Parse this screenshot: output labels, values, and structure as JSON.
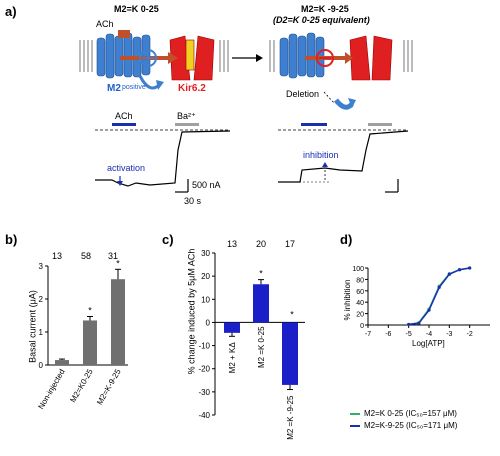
{
  "panel_a": {
    "letter": "a)",
    "left_title": "M2=K 0-25",
    "right_title": "M2=K -9-25",
    "right_subtitle": "(D2=K 0-25 equivalent)",
    "ach_label": "ACh",
    "m2_label": "M2",
    "kir_label": "Kir6.2",
    "positive_label": "positive",
    "deletion_label": "Deletion",
    "ach_bar_label": "ACh",
    "ba_bar_label": "Ba²⁺",
    "activation_label": "activation",
    "inhibition_label": "inhibition",
    "scale_current": "500 nA",
    "scale_time": "30 s",
    "colors": {
      "gpcr": "#3f7fd0",
      "channel": "#e02020",
      "m2": "#1f5fd0",
      "ach_bar": "#1a2fb0",
      "ba_bar": "#a0a0a0"
    }
  },
  "panel_b": {
    "letter": "b)",
    "ylabel": "Basal current (μA)",
    "counts": [
      "13",
      "58",
      "31"
    ],
    "stars": [
      "*",
      "*"
    ]
  },
  "panel_c": {
    "letter": "c)",
    "ylabel": "% change induced by 5μM ACh",
    "counts": [
      "13",
      "20",
      "17"
    ],
    "stars": [
      "*",
      "*"
    ],
    "bar_labels": [
      "M2 + KΔ",
      "M2 =K 0-25",
      "M2 =K -9-25"
    ]
  },
  "panel_d": {
    "letter": "d)",
    "ylabel": "% inhibition",
    "xlabel": "Log[ATP]",
    "legend": [
      {
        "text": "M2=K 0-25 (IC₅₀=157 μM)",
        "color": "#2fb070"
      },
      {
        "text": "M2=K-9-25 (IC₅₀=171 μM)",
        "color": "#1a2fb0"
      }
    ]
  },
  "chart_data": [
    {
      "type": "bar",
      "panel": "b",
      "categories": [
        "Non-injected",
        "M2=K0-25",
        "M2=K-9-25"
      ],
      "values": [
        0.15,
        1.35,
        2.6
      ],
      "errors": [
        0.03,
        0.12,
        0.3
      ],
      "ylabel": "Basal current (μA)",
      "ylim": [
        0,
        3
      ],
      "yticks": [
        "0",
        "1",
        "2",
        "3"
      ],
      "color": "#707070"
    },
    {
      "type": "bar",
      "panel": "c",
      "categories": [
        "M2 + KΔ",
        "M2 =K 0-25",
        "M2 =K -9-25"
      ],
      "values": [
        -4.5,
        16.5,
        -27
      ],
      "errors": [
        1.5,
        2.0,
        2.0
      ],
      "ylabel": "% change induced by 5μM ACh",
      "ylim": [
        -40,
        30
      ],
      "yticks": [
        "-40",
        "-30",
        "-20",
        "-10",
        "0",
        "10",
        "20",
        "30"
      ],
      "color": "#1a1fc8"
    },
    {
      "type": "line",
      "panel": "d",
      "xlabel": "Log[ATP]",
      "ylabel": "% inhibition",
      "xlim": [
        -7,
        -1
      ],
      "ylim": [
        0,
        100
      ],
      "xticks": [
        "-7",
        "-6",
        "-5",
        "-4",
        "-3",
        "-2"
      ],
      "yticks": [
        "0",
        "20",
        "40",
        "60",
        "80",
        "100"
      ],
      "series": [
        {
          "name": "M2=K 0-25 (IC₅₀=157 μM)",
          "color": "#2fb070",
          "x": [
            -5,
            -4.5,
            -4,
            -3.5,
            -3,
            -2.5,
            -2
          ],
          "y": [
            1,
            4,
            28,
            68,
            90,
            97,
            100
          ]
        },
        {
          "name": "M2=K-9-25 (IC₅₀=171 μM)",
          "color": "#1a2fb0",
          "x": [
            -5,
            -4.5,
            -4,
            -3.5,
            -3,
            -2.5,
            -2
          ],
          "y": [
            1,
            3,
            26,
            66,
            89,
            97,
            100
          ]
        }
      ]
    }
  ]
}
